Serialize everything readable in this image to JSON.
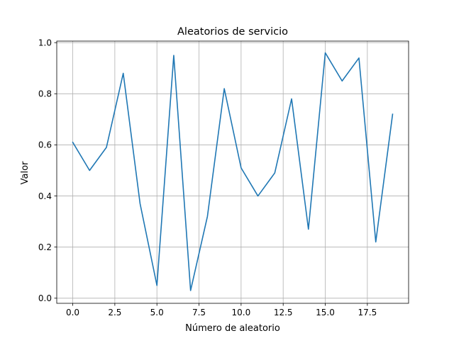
{
  "chart_data": {
    "type": "line",
    "title": "Aleatorios de servicio",
    "xlabel": "Número de aleatorio",
    "ylabel": "Valor",
    "xlim": [
      -0.95,
      19.95
    ],
    "ylim": [
      -0.02,
      1.006
    ],
    "grid": true,
    "x_ticks": [
      0.0,
      2.5,
      5.0,
      7.5,
      10.0,
      12.5,
      15.0,
      17.5
    ],
    "x_tick_labels": [
      "0.0",
      "2.5",
      "5.0",
      "7.5",
      "10.0",
      "12.5",
      "15.0",
      "17.5"
    ],
    "y_ticks": [
      0.0,
      0.2,
      0.4,
      0.6,
      0.8,
      1.0
    ],
    "y_tick_labels": [
      "0.0",
      "0.2",
      "0.4",
      "0.6",
      "0.8",
      "1.0"
    ],
    "series": [
      {
        "color": "#1f77b4",
        "x": [
          0,
          1,
          2,
          3,
          4,
          5,
          6,
          7,
          8,
          9,
          10,
          11,
          12,
          13,
          14,
          15,
          16,
          17,
          18,
          19
        ],
        "values": [
          0.61,
          0.5,
          0.59,
          0.88,
          0.37,
          0.05,
          0.95,
          0.03,
          0.32,
          0.82,
          0.51,
          0.4,
          0.49,
          0.78,
          0.27,
          0.96,
          0.85,
          0.94,
          0.22,
          0.72
        ]
      }
    ]
  }
}
